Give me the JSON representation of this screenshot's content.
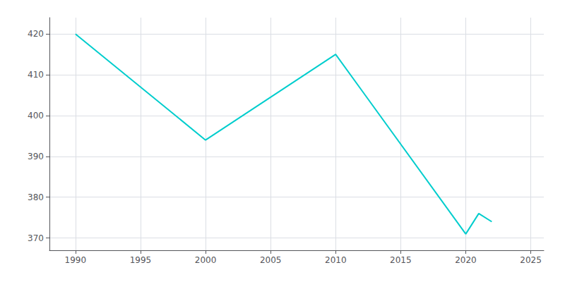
{
  "chart_data": {
    "type": "line",
    "x": [
      1990,
      2000,
      2010,
      2020,
      2021,
      2022
    ],
    "values": [
      420,
      394,
      415,
      371,
      376,
      374
    ],
    "color": "#00CDCD",
    "xlim": [
      1988,
      2026
    ],
    "ylim": [
      367,
      424
    ],
    "xticks": [
      1990,
      1995,
      2000,
      2005,
      2010,
      2015,
      2020,
      2025
    ],
    "yticks": [
      370,
      380,
      390,
      400,
      410,
      420
    ],
    "grid": true
  }
}
